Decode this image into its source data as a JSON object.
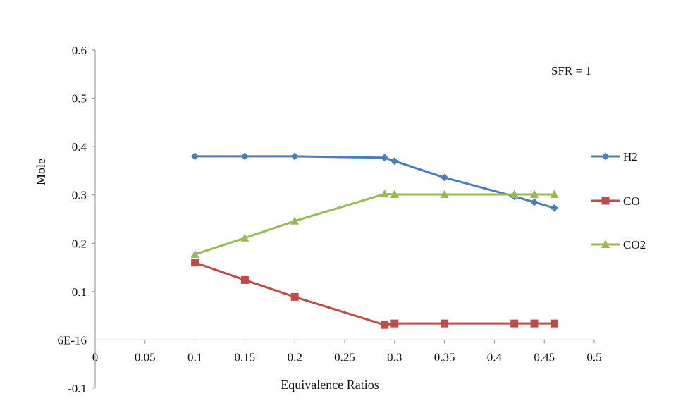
{
  "chart_data": {
    "type": "line",
    "title": "",
    "xlabel": "Equivalence Ratios",
    "ylabel": "Mole",
    "xlim": [
      0,
      0.5
    ],
    "ylim": [
      -0.1,
      0.6
    ],
    "grid": false,
    "x_ticks": [
      0,
      0.05,
      0.1,
      0.15,
      0.2,
      0.25,
      0.3,
      0.35,
      0.4,
      0.45,
      0.5
    ],
    "x_tick_labels": [
      "0",
      "0.05",
      "0.1",
      "0.15",
      "0.2",
      "0.25",
      "0.3",
      "0.35",
      "0.4",
      "0.45",
      "0.5"
    ],
    "y_ticks": [
      0.6,
      0.5,
      0.4,
      0.3,
      0.2,
      0.1,
      0,
      -0.1
    ],
    "y_tick_labels": [
      "0.6",
      "0.5",
      "0.4",
      "0.3",
      "0.2",
      "0.1",
      "6E-16",
      "-0.1"
    ],
    "annotation": "SFR = 1",
    "legend_position": "right",
    "series": [
      {
        "name": "H2",
        "color": "#4a7ebb",
        "marker": "diamond",
        "x": [
          0.1,
          0.15,
          0.2,
          0.29,
          0.3,
          0.35,
          0.42,
          0.44,
          0.46
        ],
        "y": [
          0.38,
          0.38,
          0.38,
          0.377,
          0.37,
          0.336,
          0.297,
          0.285,
          0.273
        ]
      },
      {
        "name": "CO",
        "color": "#be4b48",
        "marker": "square",
        "x": [
          0.1,
          0.15,
          0.2,
          0.29,
          0.3,
          0.35,
          0.42,
          0.44,
          0.46
        ],
        "y": [
          0.16,
          0.124,
          0.089,
          0.031,
          0.034,
          0.034,
          0.034,
          0.034,
          0.034
        ]
      },
      {
        "name": "CO2",
        "color": "#98b954",
        "marker": "triangle",
        "x": [
          0.1,
          0.15,
          0.2,
          0.29,
          0.3,
          0.35,
          0.42,
          0.44,
          0.46
        ],
        "y": [
          0.177,
          0.211,
          0.246,
          0.302,
          0.301,
          0.301,
          0.301,
          0.301,
          0.301
        ]
      }
    ]
  }
}
